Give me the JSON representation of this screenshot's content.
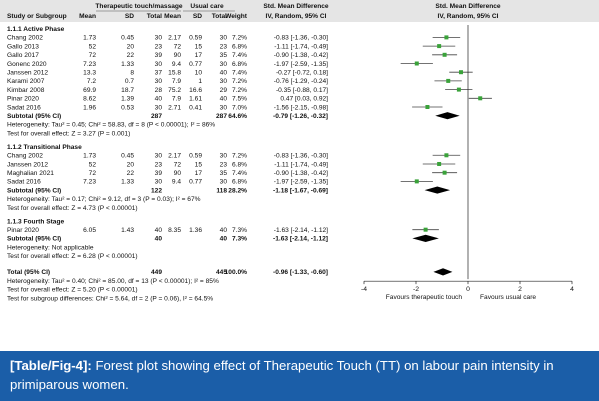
{
  "header": {
    "group1": "Therapeutic touch/massage",
    "group2": "Usual care",
    "effect": "Std. Mean Difference",
    "study_col": "Study or Subgroup",
    "mean": "Mean",
    "sd": "SD",
    "total": "Total",
    "weight": "Weight",
    "method": "IV, Random, 95% CI"
  },
  "caption": {
    "label": "[Table/Fig-4]:",
    "text": " Forest plot showing effect of Therapeutic Touch (TT) on labour pain intensity in primiparous women."
  },
  "chart_data": {
    "type": "forest",
    "xlim": [
      -4,
      4
    ],
    "ticks": [
      "-4",
      "-2",
      "0",
      "2",
      "4"
    ],
    "favours_left": "Favours therapeutic touch",
    "favours_right": "Favours usual care",
    "subgroups": [
      {
        "title": "1.1.1 Active Phase",
        "studies": [
          {
            "name": "Chang 2002",
            "m1": "1.73",
            "sd1": "0.45",
            "n1": "30",
            "m2": "2.17",
            "sd2": "0.59",
            "n2": "30",
            "w": "7.2%",
            "ci": "-0.83 [-1.36, -0.30]",
            "est": -0.83,
            "lo": -1.36,
            "hi": -0.3
          },
          {
            "name": "Gallo 2013",
            "m1": "52",
            "sd1": "20",
            "n1": "23",
            "m2": "72",
            "sd2": "15",
            "n2": "23",
            "w": "6.8%",
            "ci": "-1.11 [-1.74, -0.49]",
            "est": -1.11,
            "lo": -1.74,
            "hi": -0.49
          },
          {
            "name": "Gallo 2017",
            "m1": "72",
            "sd1": "22",
            "n1": "39",
            "m2": "90",
            "sd2": "17",
            "n2": "35",
            "w": "7.4%",
            "ci": "-0.90 [-1.38, -0.42]",
            "est": -0.9,
            "lo": -1.38,
            "hi": -0.42
          },
          {
            "name": "Gonenc 2020",
            "m1": "7.23",
            "sd1": "1.33",
            "n1": "30",
            "m2": "9.4",
            "sd2": "0.77",
            "n2": "30",
            "w": "6.8%",
            "ci": "-1.97 [-2.59, -1.35]",
            "est": -1.97,
            "lo": -2.59,
            "hi": -1.35
          },
          {
            "name": "Janssen 2012",
            "m1": "13.3",
            "sd1": "8",
            "n1": "37",
            "m2": "15.8",
            "sd2": "10",
            "n2": "40",
            "w": "7.4%",
            "ci": "-0.27 [-0.72, 0.18]",
            "est": -0.27,
            "lo": -0.72,
            "hi": 0.18
          },
          {
            "name": "Karami 2007",
            "m1": "7.2",
            "sd1": "0.7",
            "n1": "30",
            "m2": "7.9",
            "sd2": "1",
            "n2": "30",
            "w": "7.2%",
            "ci": "-0.76 [-1.29, -0.24]",
            "est": -0.76,
            "lo": -1.29,
            "hi": -0.24
          },
          {
            "name": "Kimbar 2008",
            "m1": "69.9",
            "sd1": "18.7",
            "n1": "28",
            "m2": "75.2",
            "sd2": "16.6",
            "n2": "29",
            "w": "7.2%",
            "ci": "-0.35 [-0.88, 0.17]",
            "est": -0.35,
            "lo": -0.88,
            "hi": 0.17
          },
          {
            "name": "Pinar 2020",
            "m1": "8.62",
            "sd1": "1.39",
            "n1": "40",
            "m2": "7.9",
            "sd2": "1.61",
            "n2": "40",
            "w": "7.5%",
            "ci": "0.47 [0.03, 0.92]",
            "est": 0.47,
            "lo": 0.03,
            "hi": 0.92
          },
          {
            "name": "Sadat 2016",
            "m1": "1.96",
            "sd1": "0.53",
            "n1": "30",
            "m2": "2.71",
            "sd2": "0.41",
            "n2": "30",
            "w": "7.0%",
            "ci": "-1.56 [-2.15, -0.98]",
            "est": -1.56,
            "lo": -2.15,
            "hi": -0.98
          }
        ],
        "subtotal": {
          "name": "Subtotal (95% CI)",
          "n1": "287",
          "n2": "287",
          "w": "64.6%",
          "ci": "-0.79 [-1.26, -0.32]",
          "est": -0.79,
          "lo": -1.26,
          "hi": -0.32
        },
        "het": "Heterogeneity: Tau² = 0.45; Chi² = 58.83, df = 8 (P < 0.00001); I² = 86%",
        "overall": "Test for overall effect: Z = 3.27 (P = 0.001)"
      },
      {
        "title": "1.1.2 Transitional Phase",
        "studies": [
          {
            "name": "Chang 2002",
            "m1": "1.73",
            "sd1": "0.45",
            "n1": "30",
            "m2": "2.17",
            "sd2": "0.59",
            "n2": "30",
            "w": "7.2%",
            "ci": "-0.83 [-1.36, -0.30]",
            "est": -0.83,
            "lo": -1.36,
            "hi": -0.3
          },
          {
            "name": "Janssen 2012",
            "m1": "52",
            "sd1": "20",
            "n1": "23",
            "m2": "72",
            "sd2": "15",
            "n2": "23",
            "w": "6.8%",
            "ci": "-1.11 [-1.74, -0.49]",
            "est": -1.11,
            "lo": -1.74,
            "hi": -0.49
          },
          {
            "name": "Maghalian 2021",
            "m1": "72",
            "sd1": "22",
            "n1": "39",
            "m2": "90",
            "sd2": "17",
            "n2": "35",
            "w": "7.4%",
            "ci": "-0.90 [-1.38, -0.42]",
            "est": -0.9,
            "lo": -1.38,
            "hi": -0.42
          },
          {
            "name": "Sadat 2016",
            "m1": "7.23",
            "sd1": "1.33",
            "n1": "30",
            "m2": "9.4",
            "sd2": "0.77",
            "n2": "30",
            "w": "6.8%",
            "ci": "-1.97 [-2.59, -1.35]",
            "est": -1.97,
            "lo": -2.59,
            "hi": -1.35
          }
        ],
        "subtotal": {
          "name": "Subtotal (95% CI)",
          "n1": "122",
          "n2": "118",
          "w": "28.2%",
          "ci": "-1.18 [-1.67, -0.69]",
          "est": -1.18,
          "lo": -1.67,
          "hi": -0.69
        },
        "het": "Heterogeneity: Tau² = 0.17; Chi² = 9.12, df = 3 (P = 0.03); I² = 67%",
        "overall": "Test for overall effect: Z = 4.73 (P < 0.00001)"
      },
      {
        "title": "1.1.3 Fourth Stage",
        "studies": [
          {
            "name": "Pinar 2020",
            "m1": "6.05",
            "sd1": "1.43",
            "n1": "40",
            "m2": "8.35",
            "sd2": "1.36",
            "n2": "40",
            "w": "7.3%",
            "ci": "-1.63 [-2.14, -1.12]",
            "est": -1.63,
            "lo": -2.14,
            "hi": -1.12
          }
        ],
        "subtotal": {
          "name": "Subtotal (95% CI)",
          "n1": "40",
          "n2": "40",
          "w": "7.3%",
          "ci": "-1.63 [-2.14, -1.12]",
          "est": -1.63,
          "lo": -2.14,
          "hi": -1.12
        },
        "het": "Heterogeneity: Not applicable",
        "overall": "Test for overall effect: Z = 6.28 (P < 0.00001)"
      }
    ],
    "total": {
      "name": "Total (95% CI)",
      "n1": "449",
      "n2": "445",
      "w": "100.0%",
      "ci": "-0.96 [-1.33, -0.60]",
      "est": -0.96,
      "lo": -1.33,
      "hi": -0.6
    },
    "total_het": "Heterogeneity: Tau² = 0.40; Chi² = 85.00, df = 13 (P < 0.00001); I² = 85%",
    "total_overall": "Test for overall effect: Z = 5.20 (P < 0.00001)",
    "subgroup_diff": "Test for subgroup differences: Chi² = 5.64, df = 2 (P = 0.06), I² = 64.5%"
  },
  "colors": {
    "header_bg": "#e5e5e5",
    "point": "#3aa23a",
    "caption_bg": "#1b5ea8"
  }
}
